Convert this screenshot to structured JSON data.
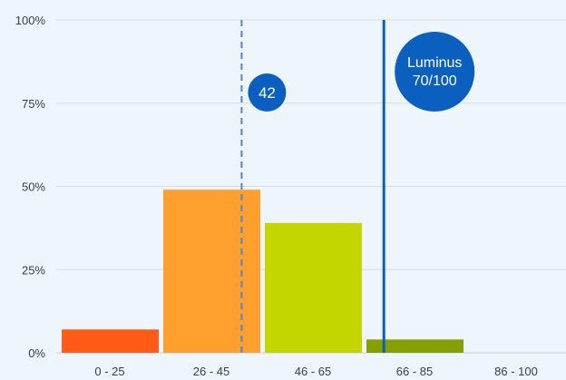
{
  "chart_data": {
    "type": "bar",
    "categories": [
      "0 - 25",
      "26 - 45",
      "46 - 65",
      "66 - 85",
      "86 - 100"
    ],
    "values": [
      7,
      49,
      39,
      4,
      0
    ],
    "bar_colors": [
      "#ff5a16",
      "#ff9f2e",
      "#c4d600",
      "#85a000",
      "#85a000"
    ],
    "ylim": [
      0,
      100
    ],
    "yticks": [
      0,
      25,
      50,
      75,
      100
    ],
    "ytick_labels": [
      "0%",
      "25%",
      "50%",
      "75%",
      "100%"
    ],
    "grid": true,
    "title": "",
    "xlabel": "",
    "ylabel": "",
    "markers": [
      {
        "score": 42,
        "label_lines": [
          "42"
        ],
        "line_style": "dashed",
        "line_color": "#4a86d6",
        "bubble_color": "#0a5fbf"
      },
      {
        "score": 70,
        "label_lines": [
          "Luminus",
          "70/100"
        ],
        "line_style": "solid",
        "line_color": "#0a5fbf",
        "bubble_color": "#0a5fbf"
      }
    ]
  }
}
